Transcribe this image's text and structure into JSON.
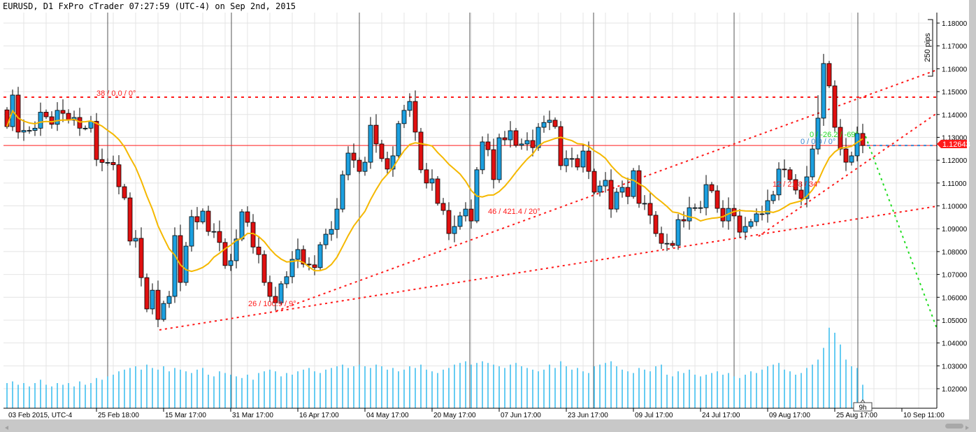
{
  "header": {
    "title": "EURUSD, D1 FxPro cTrader 07:27:59 (UTC-4) on Sep 2nd, 2015"
  },
  "colors": {
    "bull": "#1ca0e0",
    "bear": "#e01010",
    "ma": "#f5b800",
    "trend": "#ff1a1a",
    "green_line": "#22dd22",
    "volume": "#33bbee"
  },
  "chart_data": {
    "type": "candlestick",
    "symbol": "EURUSD",
    "timeframe": "D1",
    "ylim": [
      1.01,
      1.185
    ],
    "y_ticks": [
      "1.18000",
      "1.17000",
      "1.16000",
      "1.15000",
      "1.14000",
      "1.13000",
      "1.12000",
      "1.11000",
      "1.10000",
      "1.09000",
      "1.08000",
      "1.07000",
      "1.06000",
      "1.05000",
      "1.04000",
      "1.03000",
      "1.02000"
    ],
    "x_ticks": [
      "03 Feb 2015, UTC-4",
      "25 Feb 18:00",
      "15 Mar 17:00",
      "31 Mar 17:00",
      "16 Apr 17:00",
      "04 May 17:00",
      "20 May 17:00",
      "07 Jun 17:00",
      "23 Jun 17:00",
      "09 Jul 17:00",
      "24 Jul 17:00",
      "09 Aug 17:00",
      "25 Aug 17:00",
      "10 Sep 11:00"
    ],
    "first_open": 1.142,
    "close": [
      1.1347,
      1.1485,
      1.1323,
      1.133,
      1.133,
      1.134,
      1.141,
      1.139,
      1.1357,
      1.1418,
      1.1405,
      1.1375,
      1.1387,
      1.134,
      1.134,
      1.137,
      1.1203,
      1.119,
      1.119,
      1.118,
      1.1084,
      1.1035,
      1.0846,
      1.0858,
      1.0686,
      1.0549,
      1.0631,
      1.0503,
      1.0573,
      1.0604,
      1.087,
      1.0665,
      1.0824,
      1.0953,
      1.093,
      1.0977,
      1.0888,
      1.0888,
      1.084,
      1.0739,
      1.076,
      1.0855,
      1.0974,
      1.0928,
      1.082,
      1.0787,
      1.0665,
      1.0604,
      1.0576,
      1.0659,
      1.069,
      1.0766,
      1.0809,
      1.0745,
      1.0742,
      1.073,
      1.083,
      1.0876,
      1.0897,
      1.0986,
      1.1136,
      1.1231,
      1.12,
      1.1151,
      1.1191,
      1.1353,
      1.1271,
      1.1207,
      1.1161,
      1.1219,
      1.136,
      1.1418,
      1.1457,
      1.1323,
      1.1158,
      1.11,
      1.1118,
      1.1011,
      1.098,
      1.0879,
      1.091,
      1.0956,
      1.0986,
      1.0934,
      1.1158,
      1.128,
      1.1246,
      1.1115,
      1.1298,
      1.1289,
      1.1329,
      1.1265,
      1.1271,
      1.1286,
      1.1255,
      1.1344,
      1.1365,
      1.1375,
      1.1347,
      1.1176,
      1.1207,
      1.1207,
      1.117,
      1.124,
      1.1151,
      1.106,
      1.1087,
      1.1112,
      1.0986,
      1.106,
      1.1081,
      1.1041,
      1.1154,
      1.1011,
      1.1011,
      1.0959,
      1.0879,
      1.0836,
      1.0836,
      1.0827,
      1.094,
      1.0934,
      1.0992,
      1.0992,
      1.0992,
      1.1093,
      1.1066,
      1.0989,
      1.0934,
      1.0989,
      1.0956,
      1.0885,
      1.091,
      1.0931,
      1.0965,
      1.0965,
      1.1023,
      1.1048,
      1.1161,
      1.1158,
      1.1115,
      1.1069,
      1.1032,
      1.1127,
      1.1249,
      1.1384,
      1.1623,
      1.1525,
      1.1344,
      1.1249,
      1.1191,
      1.1219,
      1.1317,
      1.12643
    ],
    "volume": [
      30,
      32,
      28,
      30,
      26,
      30,
      34,
      28,
      26,
      30,
      28,
      30,
      26,
      32,
      28,
      30,
      36,
      34,
      38,
      40,
      44,
      46,
      48,
      50,
      46,
      52,
      48,
      46,
      50,
      44,
      48,
      46,
      44,
      42,
      46,
      48,
      40,
      38,
      44,
      42,
      40,
      38,
      36,
      40,
      34,
      42,
      44,
      46,
      44,
      38,
      42,
      40,
      44,
      46,
      48,
      44,
      42,
      46,
      48,
      50,
      52,
      48,
      50,
      52,
      50,
      48,
      52,
      50,
      46,
      48,
      44,
      46,
      50,
      48,
      52,
      46,
      44,
      42,
      46,
      48,
      52,
      54,
      56,
      52,
      54,
      56,
      54,
      52,
      50,
      48,
      52,
      54,
      50,
      48,
      46,
      44,
      46,
      52,
      48,
      56,
      50,
      46,
      48,
      44,
      42,
      50,
      52,
      54,
      56,
      50,
      46,
      44,
      42,
      48,
      46,
      44,
      50,
      52,
      40,
      38,
      44,
      42,
      46,
      40,
      38,
      40,
      42,
      44,
      40,
      42,
      38,
      36,
      40,
      44,
      42,
      46,
      50,
      52,
      54,
      46,
      44,
      40,
      42,
      48,
      52,
      58,
      72,
      96,
      90,
      76,
      58,
      50,
      48,
      28
    ],
    "current_price": "1.12643",
    "moving_average": {
      "type": "SMA",
      "period": 12
    },
    "annotations": {
      "pips_ruler": "250 pips",
      "countdown": "9h",
      "trendline_labels": [
        "38 / 0.0 / 0°",
        "26 / 100.9 / 9°",
        "46 / 421.4 / 20°",
        "12 / 21.8 / 34°",
        "0 / -26.2 / -69°",
        "0 / 0.0 / 0°"
      ]
    }
  }
}
